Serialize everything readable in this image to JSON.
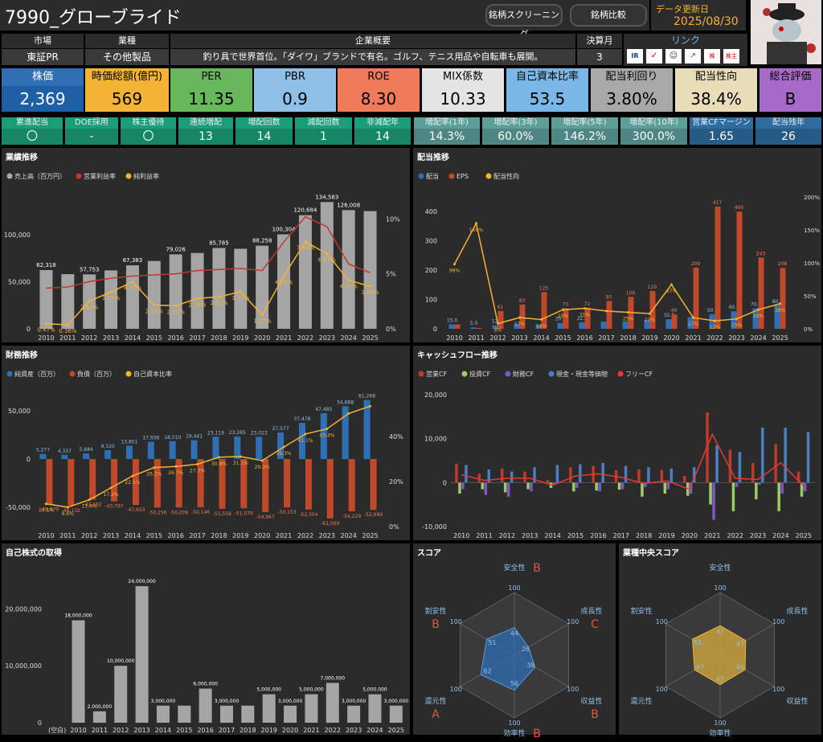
{
  "header": {
    "title": "7990_グローブライド",
    "btn_screening": "銘柄スクリーニング",
    "btn_compare": "銘柄比較",
    "update_label": "データ更新日",
    "update_date": "2025/08/30"
  },
  "info": {
    "market_h": "市場",
    "market_v": "東証PR",
    "industry_h": "業種",
    "industry_v": "その他製品",
    "overview_h": "企業概要",
    "overview_v": "釣り具で世界首位。「ダイワ」ブランドで有名。ゴルフ、テニス用品や自転車も展開。",
    "fy_h": "決算月",
    "fy_v": "3",
    "links_h": "リンク",
    "links": [
      "IR BANK",
      "kabutan",
      "minkabu",
      "chart",
      "株探",
      "株主"
    ]
  },
  "kpis": [
    {
      "label": "株価",
      "value": "2,369",
      "bg": "#2f6fb3",
      "vbg": "#1f5fa6",
      "fg": "#fff"
    },
    {
      "label": "時価総額(億円)",
      "value": "569",
      "bg": "#f5b335",
      "vbg": "#f5b335",
      "fg": "#000"
    },
    {
      "label": "PER",
      "value": "11.35",
      "bg": "#66b85a",
      "vbg": "#66b85a",
      "fg": "#000"
    },
    {
      "label": "PBR",
      "value": "0.9",
      "bg": "#8ec0e8",
      "vbg": "#8ec0e8",
      "fg": "#000"
    },
    {
      "label": "ROE",
      "value": "8.30",
      "bg": "#f07b5b",
      "vbg": "#f07b5b",
      "fg": "#000"
    },
    {
      "label": "MIX係数",
      "value": "10.33",
      "bg": "#e4e4e4",
      "vbg": "#e4e4e4",
      "fg": "#000"
    },
    {
      "label": "自己資本比率",
      "value": "53.5",
      "bg": "#7ab7e6",
      "vbg": "#7ab7e6",
      "fg": "#000"
    },
    {
      "label": "配当利回り",
      "value": "3.80%",
      "bg": "#a8a8a8",
      "vbg": "#a8a8a8",
      "fg": "#000"
    },
    {
      "label": "配当性向",
      "value": "38.4%",
      "bg": "#e8ddb8",
      "vbg": "#e8ddb8",
      "fg": "#000"
    },
    {
      "label": "総合評価",
      "value": "B",
      "bg": "#a86ac9",
      "vbg": "#a86ac9",
      "fg": "#000"
    }
  ],
  "metrics": [
    {
      "label": "累進配当",
      "value": "〇",
      "bg": "#1a9e7a"
    },
    {
      "label": "DOE採用",
      "value": "-",
      "bg": "#1a9e7a"
    },
    {
      "label": "株主優待",
      "value": "〇",
      "bg": "#1a9e7a"
    },
    {
      "label": "連続増配",
      "value": "13",
      "bg": "#1a9e7a"
    },
    {
      "label": "増配回数",
      "value": "14",
      "bg": "#1a9e7a"
    },
    {
      "label": "減配回数",
      "value": "1",
      "bg": "#1a9e7a"
    },
    {
      "label": "非減配年",
      "value": "14",
      "bg": "#1a9e7a"
    },
    {
      "label": "増配率(1年)",
      "value": "14.3%",
      "bg": "#5b9e9a"
    },
    {
      "label": "増配率(3年)",
      "value": "60.0%",
      "bg": "#5b9e9a"
    },
    {
      "label": "増配率(5年)",
      "value": "146.2%",
      "bg": "#5b9e9a"
    },
    {
      "label": "増配率(10年)",
      "value": "300.0%",
      "bg": "#5b9e9a"
    },
    {
      "label": "営業CFマージン",
      "value": "1.65",
      "bg": "#2e6b9e"
    },
    {
      "label": "配当残年",
      "value": "26",
      "bg": "#2e6b9e"
    }
  ],
  "chart_data": [
    {
      "id": "perf",
      "type": "bar",
      "title": "業績推移",
      "legend": [
        "売上高（百万円）",
        "営業利益率",
        "純利益率"
      ],
      "categories": [
        "2010",
        "2011",
        "2012",
        "2013",
        "2014",
        "2015",
        "2016",
        "2017",
        "2018",
        "2019",
        "2020",
        "2021",
        "2022",
        "2023",
        "2024",
        "2025"
      ],
      "series": [
        {
          "name": "売上高（百万円）",
          "values": [
            62318,
            58000,
            57753,
            62000,
            67383,
            72000,
            79026,
            80500,
            85785,
            85000,
            88258,
            100304,
            120684,
            134583,
            126008,
            125000
          ],
          "labels": [
            "62,318",
            "",
            "57,753",
            "",
            "67,383",
            "",
            "79,026",
            "",
            "85,785",
            "",
            "88,258",
            "100,304",
            "120,684",
            "134,583",
            "126,008",
            ""
          ]
        },
        {
          "name": "営業利益率",
          "values": [
            3.7,
            3.8,
            4.3,
            4.6,
            4.8,
            4.9,
            5.0,
            5.3,
            5.4,
            5.5,
            5.3,
            7.9,
            10.2,
            9.3,
            5.9,
            5.1
          ]
        },
        {
          "name": "純利益率",
          "values": [
            0.47,
            0.36,
            2.52,
            3.35,
            4.27,
            2.16,
            2.1,
            2.76,
            2.91,
            3.37,
            1.27,
            4.78,
            7.93,
            6.83,
            4.43,
            3.86
          ],
          "labels": [
            "0.47%",
            "0.36%",
            "2.52%",
            "3.35%",
            "4.27%",
            "2.16%",
            "2.10%",
            "2.76%",
            "2.91%",
            "3.37%",
            "1.27%",
            "4.78%",
            "7.93%",
            "6.83%",
            "4.43%",
            "3.86%"
          ]
        }
      ],
      "ylim": [
        0,
        140000
      ],
      "y2lim": [
        0,
        12
      ],
      "yticks": [
        "0",
        "50,000",
        "100,000"
      ],
      "y2ticks": [
        "0%",
        "5%",
        "10%"
      ]
    },
    {
      "id": "div",
      "type": "bar",
      "title": "配当推移",
      "legend": [
        "配当",
        "EPS",
        "配当性向"
      ],
      "categories": [
        "2010",
        "2011",
        "2012",
        "2013",
        "2014",
        "2015",
        "2016",
        "2017",
        "2018",
        "2019",
        "2020",
        "2021",
        "2022",
        "2023",
        "2024",
        "2025"
      ],
      "series": [
        {
          "name": "配当",
          "values": [
            15,
            5,
            12,
            17,
            14,
            20,
            22.5,
            25,
            25,
            30,
            32.5,
            40,
            50,
            60,
            70,
            80
          ],
          "labels": [
            "15.0",
            "5.0",
            "12.",
            "",
            "",
            "20.0",
            "22.5",
            "",
            "",
            "",
            "32.5",
            "",
            "50.0",
            "60.0",
            "70.0",
            "80.0"
          ]
        },
        {
          "name": "EPS",
          "values": [
            15,
            3,
            61,
            83,
            125,
            70,
            72,
            95,
            109,
            129,
            49,
            209,
            417,
            400,
            243,
            208
          ],
          "labels": [
            "",
            "",
            "61",
            "83",
            "125",
            "70",
            "72",
            "95",
            "109",
            "129",
            "49",
            "209",
            "417",
            "400",
            "243",
            "208"
          ]
        },
        {
          "name": "配当性向",
          "values": [
            98,
            160,
            8,
            17,
            14,
            29,
            31,
            27,
            25,
            23,
            67,
            17,
            12,
            15,
            29,
            38
          ],
          "labels": [
            "98%",
            "160%",
            "8%",
            "17%",
            "14%",
            "29%",
            "31%",
            "",
            "25%",
            "23%",
            "67%",
            "17%",
            "12%",
            "15%",
            "29%",
            "38%"
          ]
        }
      ],
      "ylim": [
        0,
        450
      ],
      "y2lim": [
        0,
        200
      ],
      "yticks": [
        "0",
        "100",
        "200",
        "300",
        "400"
      ],
      "y2ticks": [
        "0%",
        "50%",
        "100%",
        "150%",
        "200%"
      ]
    },
    {
      "id": "fin",
      "type": "bar",
      "title": "財務推移",
      "legend": [
        "純資産（百万）",
        "負債（百万）",
        "自己資本比率"
      ],
      "categories": [
        "2010",
        "2011",
        "2012",
        "2013",
        "2014",
        "2015",
        "2016",
        "2017",
        "2018",
        "2019",
        "2020",
        "2021",
        "2022",
        "2023",
        "2024",
        "2025"
      ],
      "series": [
        {
          "name": "純資産（百万）",
          "values": [
            5277,
            4337,
            5684,
            9120,
            13851,
            17936,
            18510,
            19441,
            23119,
            23265,
            23023,
            27577,
            37478,
            47485,
            54688,
            61268
          ],
          "labels": [
            "5,277",
            "4,337",
            "5,684",
            "9,120",
            "13,851",
            "17,936",
            "18,510",
            "19,441",
            "23,119",
            "23,265",
            "23,023",
            "27,577",
            "37,478",
            "47,485",
            "54,688",
            "61,268"
          ]
        },
        {
          "name": "負債（百万）",
          "values": [
            -46979,
            -48132,
            -42162,
            -43797,
            -47603,
            -50256,
            -50209,
            -50146,
            -51559,
            -51079,
            -54967,
            -50153,
            -52304,
            -61569,
            -54229,
            -52689
          ],
          "labels": [
            "-46,979",
            "-48,132",
            "-42,162",
            "-43,797",
            "-47,603",
            "-50,256",
            "-50,209",
            "-50,146",
            "-51,559",
            "-51,079",
            "-54,967",
            "-50,153",
            "-52,304",
            "-61,569",
            "-54,229",
            "-52,689"
          ]
        },
        {
          "name": "自己資本比率",
          "values": [
            10.1,
            8.6,
            11.9,
            17.2,
            22.5,
            26.2,
            26.7,
            27.7,
            30.8,
            31.1,
            29.3,
            35.3,
            41.1,
            43.4,
            50.2,
            53.5
          ],
          "labels": [
            "10.1%",
            "8.6%",
            "11.9%",
            "17.2%",
            "22.5%",
            "26.2%",
            "26.7%",
            "27.7%",
            "30.8%",
            "31.1%",
            "29.3%",
            "35.3%",
            "41.1%",
            "43.4%",
            "",
            ""
          ]
        }
      ],
      "ylim": [
        -70000,
        70000
      ],
      "y2lim": [
        0,
        60
      ],
      "yticks": [
        "-50,000",
        "0",
        "50,000"
      ],
      "y2ticks": [
        "0%",
        "20%",
        "40%"
      ]
    },
    {
      "id": "cf",
      "type": "bar",
      "title": "キャッシュフロー推移",
      "legend": [
        "営業CF",
        "投資CF",
        "財務CF",
        "現金・現金等価物",
        "フリーCF"
      ],
      "categories": [
        "2010",
        "2011",
        "2012",
        "2013",
        "2014",
        "2015",
        "2016",
        "2017",
        "2018",
        "2019",
        "2020",
        "2021",
        "2022",
        "2023",
        "2024",
        "2025"
      ],
      "series": [
        {
          "name": "営業CF",
          "values": [
            4300,
            2000,
            3200,
            2500,
            600,
            3500,
            3800,
            2800,
            3000,
            2900,
            1500,
            16000,
            7500,
            4500,
            8800,
            2500
          ]
        },
        {
          "name": "投資CF",
          "values": [
            -2500,
            -1500,
            -2200,
            -1500,
            -1200,
            -2000,
            -1800,
            -1600,
            -3200,
            -2500,
            -3000,
            -5000,
            -6500,
            -3800,
            -6500,
            -3200
          ]
        },
        {
          "name": "財務CF",
          "values": [
            -1500,
            -2800,
            -3200,
            -2000,
            -500,
            -1200,
            -2000,
            -1500,
            -1000,
            -1500,
            -2500,
            -8500,
            -1000,
            -500,
            -2500,
            -2000
          ]
        },
        {
          "name": "現金・現金等価物",
          "values": [
            4000,
            3000,
            2500,
            3500,
            4000,
            4200,
            4500,
            3800,
            3500,
            3200,
            3500,
            8500,
            7000,
            12500,
            12500,
            11500
          ]
        },
        {
          "name": "フリーCF",
          "values": [
            1800,
            500,
            1000,
            1000,
            -600,
            1500,
            2000,
            1200,
            -200,
            400,
            -1500,
            11000,
            1000,
            700,
            4500,
            -700
          ]
        }
      ],
      "ylim": [
        -10000,
        20000
      ],
      "yticks": [
        "-10,000",
        "0",
        "10,000",
        "20,000"
      ]
    },
    {
      "id": "buyback",
      "type": "bar",
      "title": "自己株式の取得",
      "categories": [
        "(空白)",
        "2010",
        "2011",
        "2012",
        "2013",
        "2014",
        "2015",
        "2016",
        "2017",
        "2018",
        "2019",
        "2020",
        "2021",
        "2022",
        "2023",
        "2024",
        "2025"
      ],
      "series": [
        {
          "name": "取得",
          "values": [
            0,
            18000000,
            2000000,
            10000000,
            24000000,
            3000000,
            3000000,
            6000000,
            3000000,
            3000000,
            5000000,
            3000000,
            5000000,
            7000000,
            3000000,
            5000000,
            3000000
          ],
          "labels": [
            "",
            "18,000,000",
            "2,000,000",
            "10,000,000",
            "24,000,000",
            "3,000,000",
            "",
            "6,000,000",
            "3,000,000",
            "",
            "5,000,000",
            "3,000,000",
            "5,000,000",
            "7,000,000",
            "3,000,000",
            "5,000,000",
            "3,000,000"
          ]
        }
      ],
      "ylim": [
        0,
        26000000
      ],
      "yticks": [
        "0",
        "10,000,000",
        "20,000,000"
      ]
    },
    {
      "id": "score",
      "type": "radar",
      "title": "スコア",
      "axes": [
        "安全性",
        "成長性",
        "収益性",
        "効率性",
        "還元性",
        "割安性"
      ],
      "values": [
        44,
        26,
        38,
        56,
        62,
        51
      ],
      "grades": [
        "B",
        "C",
        "B",
        "B",
        "A",
        "B"
      ],
      "max": 100
    },
    {
      "id": "ind",
      "type": "radar",
      "title": "業種中央スコア",
      "axes": [
        "安全性",
        "成長性",
        "収益性",
        "効率性",
        "還元性",
        "割安性"
      ],
      "values": [
        47,
        47,
        46,
        47,
        47,
        51
      ],
      "max": 100
    }
  ]
}
